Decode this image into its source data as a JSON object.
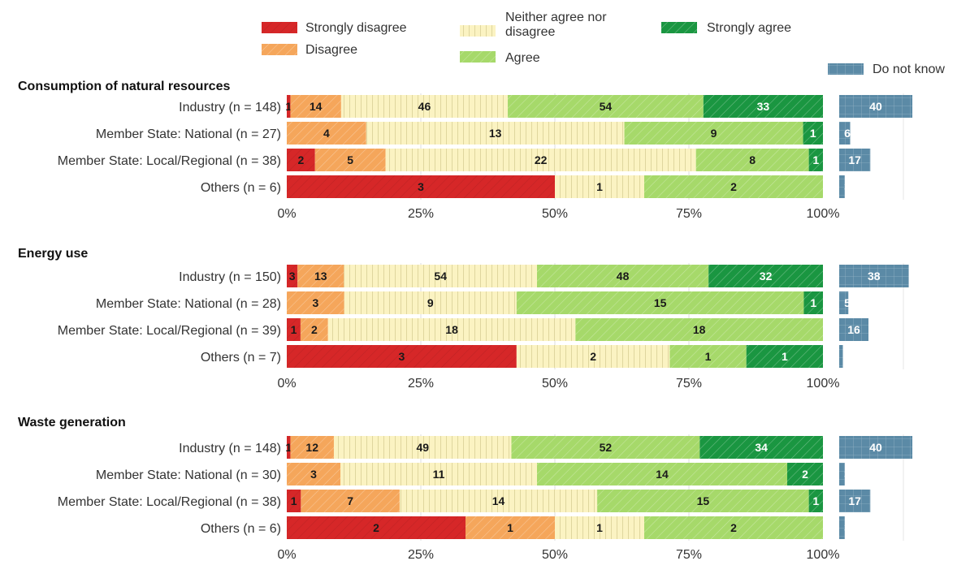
{
  "chart_data": {
    "type": "bar",
    "stacked": "percent",
    "orientation": "horizontal",
    "legend": {
      "placement": "top",
      "entries": [
        {
          "key": "strongly_disagree",
          "label": "Strongly disagree"
        },
        {
          "key": "disagree",
          "label": "Disagree"
        },
        {
          "key": "neither",
          "label_lines": [
            "Neither agree nor",
            "disagree"
          ]
        },
        {
          "key": "agree",
          "label": "Agree"
        },
        {
          "key": "strongly_agree",
          "label": "Strongly agree"
        },
        {
          "key": "do_not_know",
          "label": "Do not know"
        }
      ]
    },
    "colors": {
      "strongly_disagree": "#d62728",
      "disagree": "#f5a65b",
      "neither": "#fbf3c2",
      "agree": "#a6d96a",
      "strongly_agree": "#1a9641",
      "do_not_know": "#5b8aa6"
    },
    "x_ticks": [
      "0%",
      "25%",
      "50%",
      "75%",
      "100%"
    ],
    "xlim": [
      0,
      100
    ],
    "dk_scale_max": 40,
    "panels": [
      {
        "title": "Consumption of natural resources",
        "rows": [
          {
            "label": "Industry (n = 148)",
            "values": [
              1,
              14,
              46,
              54,
              33
            ],
            "dk": 40
          },
          {
            "label": "Member State: National (n = 27)",
            "values": [
              0,
              4,
              13,
              9,
              1
            ],
            "dk": 6
          },
          {
            "label": "Member State: Local/Regional (n = 38)",
            "values": [
              2,
              5,
              22,
              8,
              1
            ],
            "dk": 17
          },
          {
            "label": "Others (n = 6)",
            "values": [
              3,
              0,
              1,
              2,
              0
            ],
            "dk": 3
          }
        ]
      },
      {
        "title": "Energy use",
        "rows": [
          {
            "label": "Industry (n = 150)",
            "values": [
              3,
              13,
              54,
              48,
              32
            ],
            "dk": 38
          },
          {
            "label": "Member State: National (n = 28)",
            "values": [
              0,
              3,
              9,
              15,
              1
            ],
            "dk": 5
          },
          {
            "label": "Member State: Local/Regional (n = 39)",
            "values": [
              1,
              2,
              18,
              18,
              0
            ],
            "dk": 16
          },
          {
            "label": "Others (n = 7)",
            "values": [
              3,
              0,
              2,
              1,
              1
            ],
            "dk": 2
          }
        ]
      },
      {
        "title": "Waste generation",
        "rows": [
          {
            "label": "Industry (n = 148)",
            "values": [
              1,
              12,
              49,
              52,
              34
            ],
            "dk": 40
          },
          {
            "label": "Member State: National (n = 30)",
            "values": [
              0,
              3,
              11,
              14,
              2
            ],
            "dk": 3
          },
          {
            "label": "Member State: Local/Regional (n = 38)",
            "values": [
              1,
              7,
              14,
              15,
              1
            ],
            "dk": 17
          },
          {
            "label": "Others (n = 6)",
            "values": [
              2,
              1,
              1,
              2,
              0
            ],
            "dk": 3
          }
        ]
      }
    ]
  }
}
